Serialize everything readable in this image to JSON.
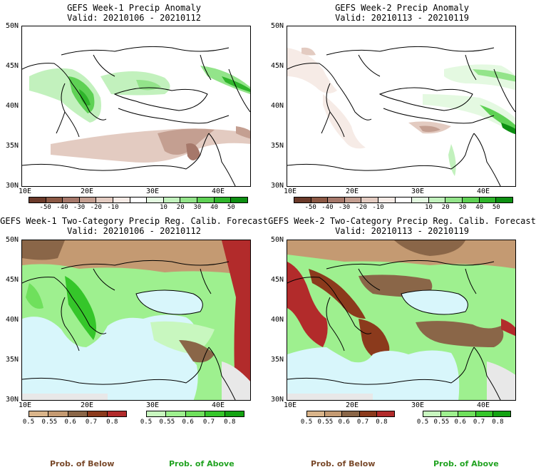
{
  "panels": [
    {
      "title": "GEFS Week-1 Precip Anomaly",
      "valid": "Valid: 20210106 - 20210112"
    },
    {
      "title": "GEFS Week-2 Precip Anomaly",
      "valid": "Valid: 20210113 - 20210119"
    },
    {
      "title": "GEFS Week-1 Two-Category Precip Reg. Calib. Forecast",
      "valid": "Valid: 20210106 - 20210112"
    },
    {
      "title": "GEFS Week-2 Two-Category Precip Reg. Calib. Forecast",
      "valid": "Valid: 20210113 - 20210119"
    }
  ],
  "axes": {
    "lat": [
      "50N",
      "45N",
      "40N",
      "35N",
      "30N"
    ],
    "lon": [
      "10E",
      "20E",
      "30E",
      "40E"
    ]
  },
  "anomaly_colorbar": {
    "labels": [
      "-50",
      "-40",
      "-30",
      "-20",
      "-10",
      "10",
      "20",
      "30",
      "40",
      "50"
    ],
    "colors": [
      "#6b3a2a",
      "#8c5844",
      "#a6786a",
      "#c49f91",
      "#e3cbc1",
      "#f6ebe6",
      "#ffffff",
      "#e4f9e1",
      "#c2f1bd",
      "#93e48a",
      "#5ed154",
      "#2fb52b",
      "#0d8f12"
    ]
  },
  "prob_below": {
    "labels": [
      "0.5",
      "0.55",
      "0.6",
      "0.7",
      "0.8"
    ],
    "colors": [
      "#d9b48a",
      "#c49a72",
      "#8a6648",
      "#8b3a1c",
      "#b22b2b"
    ],
    "caption": "Prob. of Below",
    "caption_color": "#7a4a2b"
  },
  "prob_above": {
    "labels": [
      "0.5",
      "0.55",
      "0.6",
      "0.7",
      "0.8"
    ],
    "colors": [
      "#c8f7bf",
      "#9ef08f",
      "#6fe05c",
      "#35c62a",
      "#14a312"
    ],
    "caption": "Prob. of Above",
    "caption_color": "#22a322"
  },
  "colors": {
    "sea": "#d8f6fb",
    "nodata": "#e8e8e8"
  }
}
